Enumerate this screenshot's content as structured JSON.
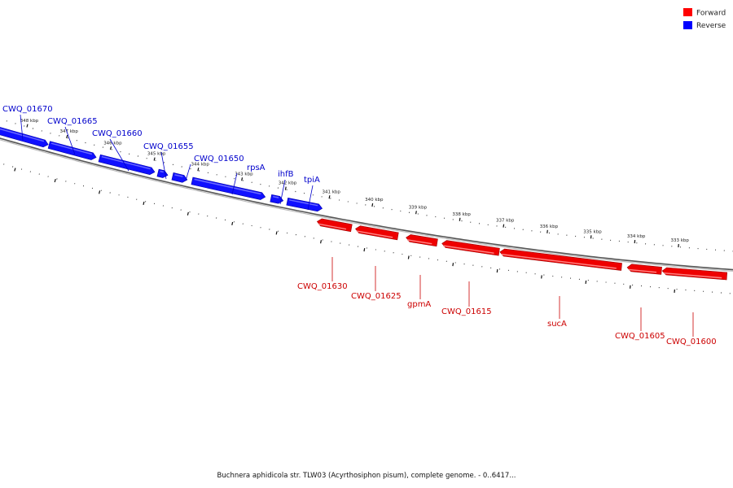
{
  "legend": {
    "forward": {
      "label": "Forward",
      "color": "#ff0000"
    },
    "reverse": {
      "label": "Reverse",
      "color": "#0000ff"
    }
  },
  "caption": "Buchnera aphidicola str. TLW03 (Acyrthosiphon pisum), complete genome. - 0..6417...",
  "colors": {
    "reverse": "#1010ff",
    "forward": "#ee0000",
    "backbone": "#888888",
    "reverse_label": "#0000cc",
    "forward_label": "#cc0000"
  },
  "tick_labels": [
    "348 kbp",
    "347 kbp",
    "346 kbp",
    "345 kbp",
    "344 kbp",
    "343 kbp",
    "342 kbp",
    "341 kbp",
    "340 kbp",
    "339 kbp",
    "338 kbp",
    "337 kbp",
    "336 kbp",
    "335 kbp",
    "334 kbp",
    "333 kbp"
  ],
  "reverse_genes": [
    "CWQ_01670",
    "CWQ_01665",
    "CWQ_01660",
    "CWQ_01655",
    "CWQ_01650",
    "rpsA",
    "ihfB",
    "tpiA"
  ],
  "forward_genes": [
    "CWQ_01630",
    "CWQ_01625",
    "gpmA",
    "CWQ_01615",
    "sucA",
    "CWQ_01605",
    "CWQ_01600"
  ]
}
